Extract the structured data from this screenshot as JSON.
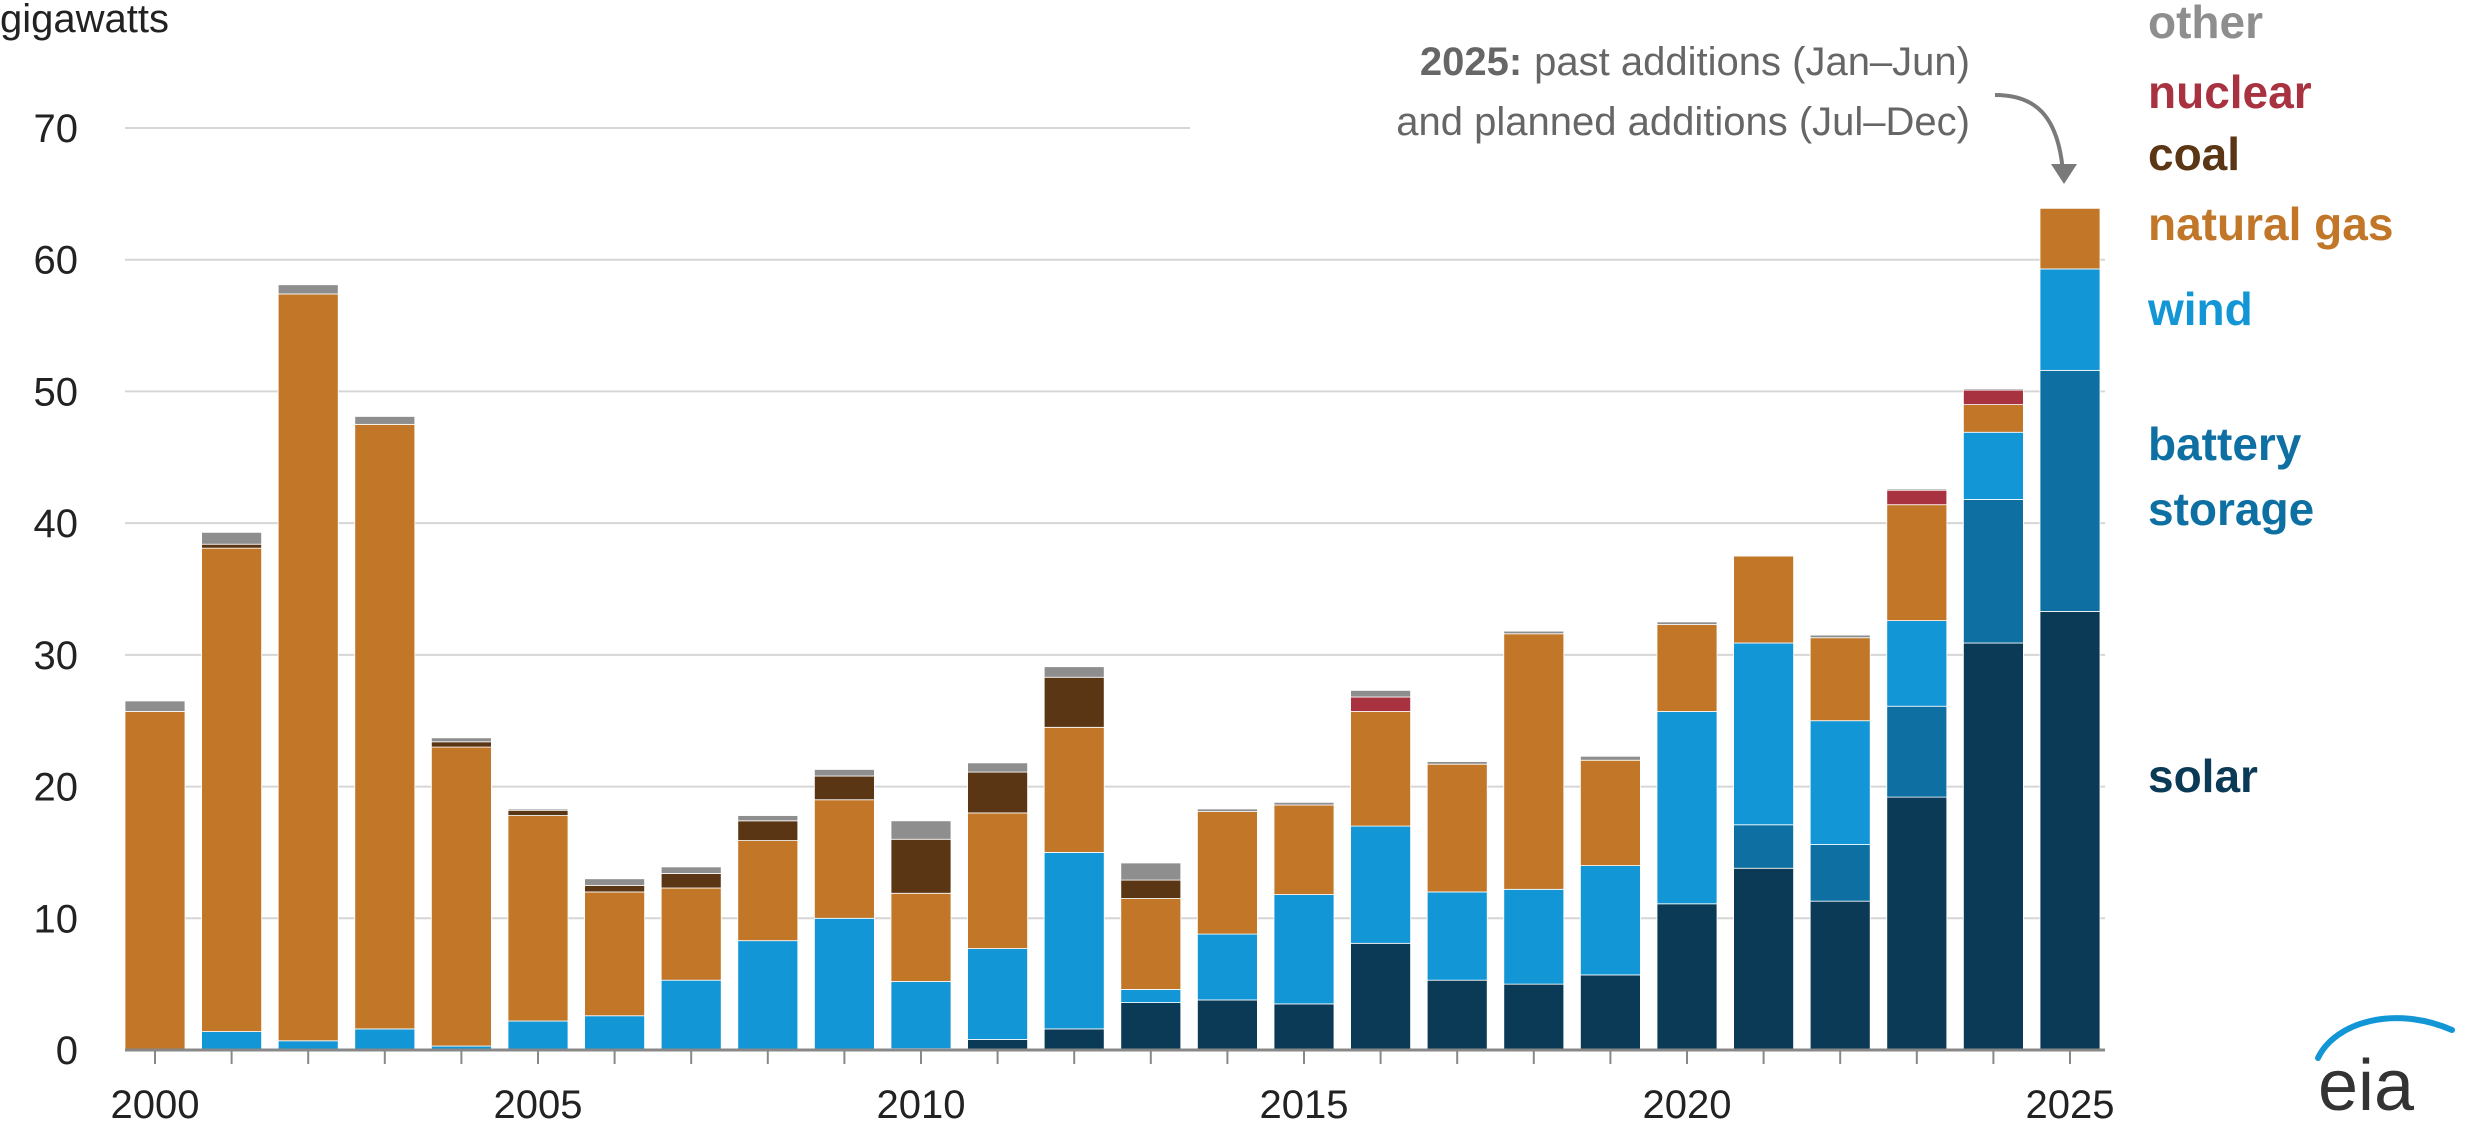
{
  "chart_data": {
    "type": "bar",
    "stacked": true,
    "ylabel": "gigawatts",
    "ylim": [
      0,
      70
    ],
    "yticks": [
      0,
      10,
      20,
      30,
      40,
      50,
      60,
      70
    ],
    "xticks": [
      "2000",
      "2005",
      "2010",
      "2015",
      "2020",
      "2025"
    ],
    "grid": true,
    "legend_placement": "right",
    "categories": [
      "2000",
      "2001",
      "2002",
      "2003",
      "2004",
      "2005",
      "2006",
      "2007",
      "2008",
      "2009",
      "2010",
      "2011",
      "2012",
      "2013",
      "2014",
      "2015",
      "2016",
      "2017",
      "2018",
      "2019",
      "2020",
      "2021",
      "2022",
      "2023",
      "2024",
      "2025"
    ],
    "series": [
      {
        "name": "solar",
        "color": "#0b3a56",
        "values": [
          0,
          0,
          0,
          0,
          0,
          0,
          0,
          0,
          0,
          0,
          0.1,
          0.8,
          1.6,
          3.6,
          3.8,
          3.5,
          8.1,
          5.3,
          5.0,
          5.7,
          11.1,
          13.8,
          11.3,
          19.2,
          30.9,
          33.3
        ]
      },
      {
        "name": "battery storage",
        "color": "#0e6fa3",
        "values": [
          0,
          0,
          0,
          0,
          0,
          0,
          0,
          0,
          0,
          0,
          0,
          0,
          0,
          0,
          0,
          0,
          0,
          0,
          0,
          0,
          0,
          3.3,
          4.3,
          6.9,
          10.9,
          18.3
        ]
      },
      {
        "name": "wind",
        "color": "#1296d6",
        "values": [
          0,
          1.4,
          0.7,
          1.6,
          0.3,
          2.2,
          2.6,
          5.3,
          8.3,
          10.0,
          5.1,
          6.9,
          13.4,
          1.0,
          5.0,
          8.3,
          8.9,
          6.7,
          7.2,
          8.3,
          14.6,
          13.8,
          9.4,
          6.5,
          5.1,
          7.7
        ]
      },
      {
        "name": "natural gas",
        "color": "#c17628",
        "values": [
          25.7,
          36.7,
          56.7,
          45.9,
          22.7,
          15.6,
          9.4,
          7.0,
          7.6,
          9.0,
          6.7,
          10.3,
          9.5,
          6.9,
          9.3,
          6.8,
          8.7,
          9.7,
          19.4,
          8.0,
          6.6,
          6.6,
          6.3,
          8.8,
          2.1,
          4.6
        ]
      },
      {
        "name": "coal",
        "color": "#5a3615",
        "values": [
          0,
          0.3,
          0,
          0,
          0.4,
          0.4,
          0.5,
          1.1,
          1.5,
          1.8,
          4.1,
          3.1,
          3.8,
          1.4,
          0,
          0,
          0,
          0,
          0,
          0,
          0,
          0,
          0,
          0,
          0,
          0
        ]
      },
      {
        "name": "nuclear",
        "color": "#a8323f",
        "values": [
          0,
          0,
          0,
          0,
          0,
          0,
          0,
          0,
          0,
          0,
          0,
          0,
          0,
          0,
          0,
          0,
          1.1,
          0,
          0,
          0,
          0,
          0,
          0,
          1.1,
          1.1,
          0
        ]
      },
      {
        "name": "other",
        "color": "#8e8e8e",
        "values": [
          0.8,
          0.9,
          0.7,
          0.6,
          0.3,
          0.1,
          0.5,
          0.5,
          0.4,
          0.5,
          1.4,
          0.7,
          0.8,
          1.3,
          0.2,
          0.2,
          0.5,
          0.2,
          0.2,
          0.3,
          0.2,
          0,
          0.2,
          0.1,
          0.1,
          0
        ]
      }
    ],
    "annotation": {
      "bold": "2025:",
      "line1": "past additions (Jan–Jun)",
      "line2": "and planned additions (Jul–Dec)",
      "color": "#666666"
    },
    "legend_labels": [
      {
        "text": "other",
        "color": "#8e8e8e"
      },
      {
        "text": "nuclear",
        "color": "#a8323f"
      },
      {
        "text": "coal",
        "color": "#5a3615"
      },
      {
        "text": "natural gas",
        "color": "#c17628"
      },
      {
        "text": "wind",
        "color": "#1296d6"
      },
      {
        "text": "battery",
        "color": "#0e6fa3"
      },
      {
        "text": "storage",
        "color": "#0e6fa3"
      },
      {
        "text": "solar",
        "color": "#0b3a56"
      }
    ],
    "logo_text": "eia"
  }
}
